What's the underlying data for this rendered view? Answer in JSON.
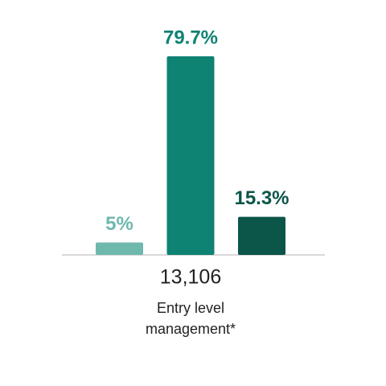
{
  "chart_data": {
    "type": "bar",
    "categories": [
      null,
      null,
      null
    ],
    "values": [
      5,
      79.7,
      15.3
    ],
    "value_labels": [
      "5%",
      "79.7%",
      "15.3%"
    ],
    "colors": [
      "#6fb8ad",
      "#0e8273",
      "#0b5549"
    ],
    "group_total": "13,106",
    "group_label": "Entry level management*"
  }
}
